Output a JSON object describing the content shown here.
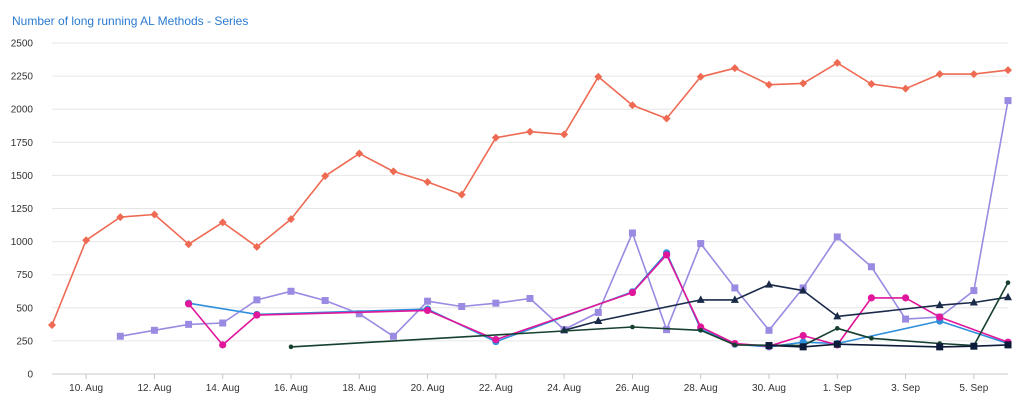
{
  "chart_data": {
    "type": "line",
    "title": "Number of long running AL Methods - Series",
    "xlabel": "",
    "ylabel": "",
    "ylim": [
      0,
      2500
    ],
    "yticks": [
      0,
      250,
      500,
      750,
      1000,
      1250,
      1500,
      1750,
      2000,
      2250,
      2500
    ],
    "x_start": "2024-08-09",
    "x_end": "2024-09-06",
    "xticks": [
      {
        "date": "2024-08-10",
        "label": "10. Aug"
      },
      {
        "date": "2024-08-12",
        "label": "12. Aug"
      },
      {
        "date": "2024-08-14",
        "label": "14. Aug"
      },
      {
        "date": "2024-08-16",
        "label": "16. Aug"
      },
      {
        "date": "2024-08-18",
        "label": "18. Aug"
      },
      {
        "date": "2024-08-20",
        "label": "20. Aug"
      },
      {
        "date": "2024-08-22",
        "label": "22. Aug"
      },
      {
        "date": "2024-08-24",
        "label": "24. Aug"
      },
      {
        "date": "2024-08-26",
        "label": "26. Aug"
      },
      {
        "date": "2024-08-28",
        "label": "28. Aug"
      },
      {
        "date": "2024-08-30",
        "label": "30. Aug"
      },
      {
        "date": "2024-09-01",
        "label": "1. Sep"
      },
      {
        "date": "2024-09-03",
        "label": "3. Sep"
      },
      {
        "date": "2024-09-05",
        "label": "5. Sep"
      }
    ],
    "grid": true,
    "legend": "none",
    "series": [
      {
        "color": "#ee6a53",
        "marker": "diamond",
        "points": [
          [
            "2024-08-09",
            370
          ],
          [
            "2024-08-10",
            1010
          ],
          [
            "2024-08-11",
            1185
          ],
          [
            "2024-08-12",
            1205
          ],
          [
            "2024-08-13",
            980
          ],
          [
            "2024-08-14",
            1145
          ],
          [
            "2024-08-15",
            960
          ],
          [
            "2024-08-16",
            1170
          ],
          [
            "2024-08-17",
            1495
          ],
          [
            "2024-08-18",
            1665
          ],
          [
            "2024-08-19",
            1530
          ],
          [
            "2024-08-20",
            1450
          ],
          [
            "2024-08-21",
            1355
          ],
          [
            "2024-08-22",
            1785
          ],
          [
            "2024-08-23",
            1830
          ],
          [
            "2024-08-24",
            1810
          ],
          [
            "2024-08-25",
            2245
          ],
          [
            "2024-08-26",
            2030
          ],
          [
            "2024-08-27",
            1930
          ],
          [
            "2024-08-28",
            2245
          ],
          [
            "2024-08-29",
            2310
          ],
          [
            "2024-08-30",
            2185
          ],
          [
            "2024-08-31",
            2195
          ],
          [
            "2024-09-01",
            2350
          ],
          [
            "2024-09-02",
            2190
          ],
          [
            "2024-09-03",
            2155
          ],
          [
            "2024-09-04",
            2265
          ],
          [
            "2024-09-05",
            2265
          ],
          [
            "2024-09-06",
            2295
          ]
        ]
      },
      {
        "color": "#9a8ae2",
        "marker": "square",
        "points": [
          [
            "2024-08-11",
            285
          ],
          [
            "2024-08-12",
            330
          ],
          [
            "2024-08-13",
            375
          ],
          [
            "2024-08-14",
            385
          ],
          [
            "2024-08-15",
            560
          ],
          [
            "2024-08-16",
            625
          ],
          [
            "2024-08-17",
            555
          ],
          [
            "2024-08-18",
            455
          ],
          [
            "2024-08-19",
            285
          ],
          [
            "2024-08-20",
            550
          ],
          [
            "2024-08-21",
            510
          ],
          [
            "2024-08-22",
            535
          ],
          [
            "2024-08-23",
            570
          ],
          [
            "2024-08-24",
            335
          ],
          [
            "2024-08-25",
            465
          ],
          [
            "2024-08-26",
            1065
          ],
          [
            "2024-08-27",
            335
          ],
          [
            "2024-08-28",
            985
          ],
          [
            "2024-08-29",
            650
          ],
          [
            "2024-08-30",
            330
          ],
          [
            "2024-08-31",
            650
          ],
          [
            "2024-09-01",
            1035
          ],
          [
            "2024-09-02",
            810
          ],
          [
            "2024-09-03",
            415
          ],
          [
            "2024-09-04",
            430
          ],
          [
            "2024-09-05",
            630
          ],
          [
            "2024-09-06",
            2065
          ]
        ]
      },
      {
        "color": "#2e8fdc",
        "marker": "circle",
        "points": [
          [
            "2024-08-13",
            535
          ],
          [
            "2024-08-15",
            450
          ],
          [
            "2024-08-20",
            490
          ],
          [
            "2024-08-22",
            245
          ],
          [
            "2024-08-26",
            620
          ],
          [
            "2024-08-27",
            915
          ],
          [
            "2024-08-28",
            340
          ],
          [
            "2024-08-29",
            225
          ],
          [
            "2024-08-30",
            205
          ],
          [
            "2024-08-31",
            240
          ],
          [
            "2024-09-01",
            230
          ],
          [
            "2024-09-04",
            400
          ],
          [
            "2024-09-06",
            230
          ]
        ]
      },
      {
        "color": "#e0169b",
        "marker": "circle",
        "points": [
          [
            "2024-08-13",
            530
          ],
          [
            "2024-08-14",
            220
          ],
          [
            "2024-08-15",
            445
          ],
          [
            "2024-08-20",
            480
          ],
          [
            "2024-08-22",
            260
          ],
          [
            "2024-08-26",
            615
          ],
          [
            "2024-08-27",
            900
          ],
          [
            "2024-08-28",
            355
          ],
          [
            "2024-08-29",
            230
          ],
          [
            "2024-08-30",
            210
          ],
          [
            "2024-08-31",
            290
          ],
          [
            "2024-09-01",
            220
          ],
          [
            "2024-09-02",
            575
          ],
          [
            "2024-09-03",
            575
          ],
          [
            "2024-09-04",
            430
          ],
          [
            "2024-09-06",
            240
          ]
        ]
      },
      {
        "color": "#1a2b4a",
        "marker": "triangle",
        "points": [
          [
            "2024-08-24",
            330
          ],
          [
            "2024-08-25",
            400
          ],
          [
            "2024-08-28",
            560
          ],
          [
            "2024-08-29",
            560
          ],
          [
            "2024-08-30",
            675
          ],
          [
            "2024-08-31",
            630
          ],
          [
            "2024-09-01",
            435
          ],
          [
            "2024-09-04",
            520
          ],
          [
            "2024-09-05",
            540
          ],
          [
            "2024-09-06",
            580
          ]
        ]
      },
      {
        "color": "#16402e",
        "marker": "dot",
        "points": [
          [
            "2024-08-16",
            205
          ],
          [
            "2024-08-26",
            355
          ],
          [
            "2024-08-28",
            330
          ],
          [
            "2024-08-29",
            220
          ],
          [
            "2024-08-31",
            215
          ],
          [
            "2024-09-01",
            345
          ],
          [
            "2024-09-02",
            270
          ],
          [
            "2024-09-04",
            230
          ],
          [
            "2024-09-05",
            215
          ],
          [
            "2024-09-06",
            690
          ]
        ]
      },
      {
        "color": "#0d1b3a",
        "marker": "square",
        "points": [
          [
            "2024-08-30",
            215
          ],
          [
            "2024-08-31",
            205
          ],
          [
            "2024-09-01",
            225
          ],
          [
            "2024-09-04",
            205
          ],
          [
            "2024-09-05",
            210
          ],
          [
            "2024-09-06",
            220
          ]
        ]
      }
    ]
  }
}
